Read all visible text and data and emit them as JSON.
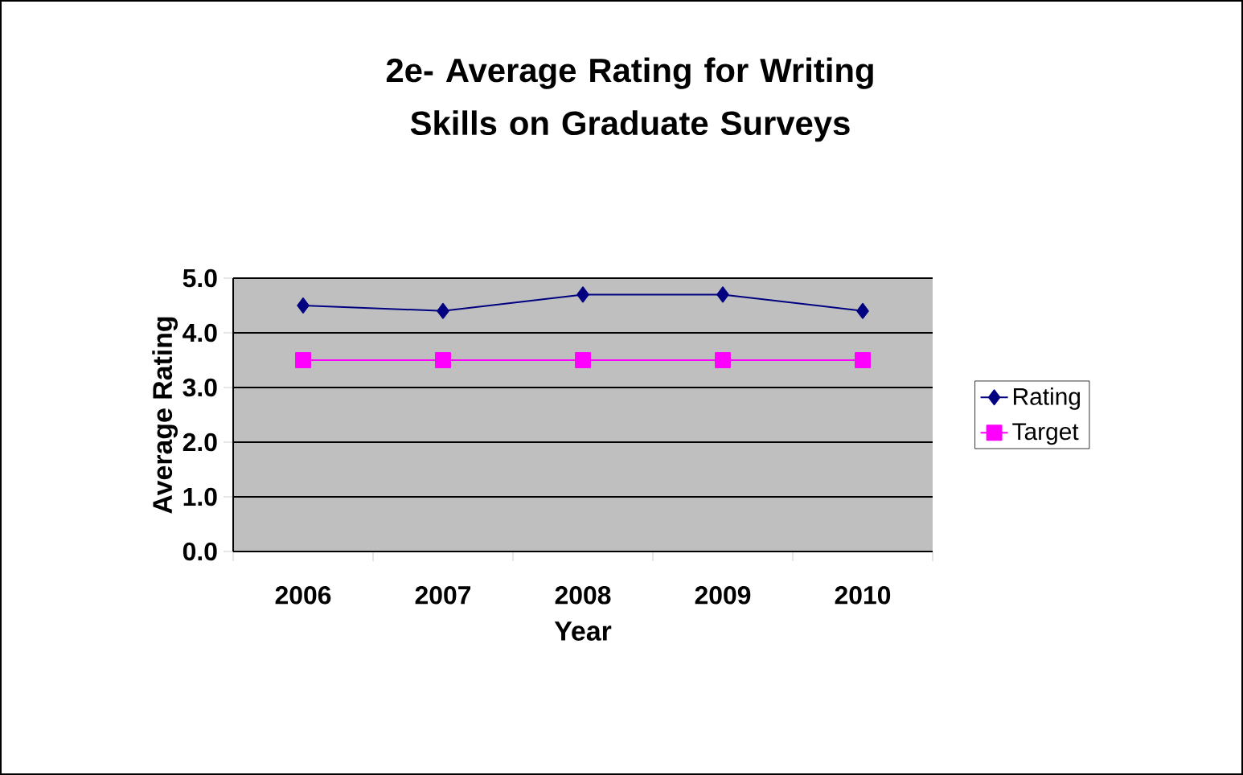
{
  "chart_data": {
    "type": "line",
    "title": "2e- Average Rating for Writing Skills on Graduate Surveys",
    "xlabel": "Year",
    "ylabel": "Average Rating",
    "categories": [
      "2006",
      "2007",
      "2008",
      "2009",
      "2010"
    ],
    "series": [
      {
        "name": "Rating",
        "color": "#000080",
        "marker": "diamond",
        "values": [
          4.5,
          4.4,
          4.7,
          4.7,
          4.4
        ]
      },
      {
        "name": "Target",
        "color": "#ff00ff",
        "marker": "square",
        "values": [
          3.5,
          3.5,
          3.5,
          3.5,
          3.5
        ]
      }
    ],
    "ylim": [
      0,
      5
    ],
    "yticks": [
      {
        "value": 0,
        "label": "0.0"
      },
      {
        "value": 1,
        "label": "1.0"
      },
      {
        "value": 2,
        "label": "2.0"
      },
      {
        "value": 3,
        "label": "3.0"
      },
      {
        "value": 4,
        "label": "4.0"
      },
      {
        "value": 5,
        "label": "5.0"
      }
    ],
    "grid": "y",
    "legend": "right",
    "line_style": "solid"
  }
}
